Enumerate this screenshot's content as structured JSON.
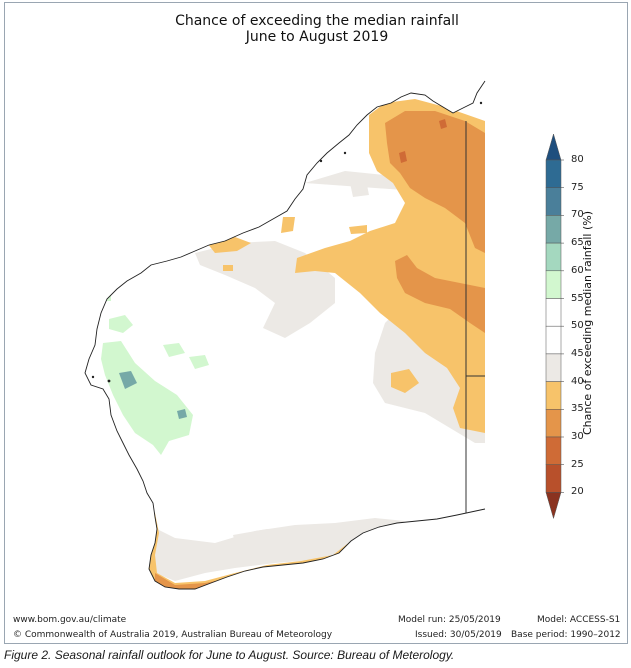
{
  "title_line1": "Chance of exceeding the median rainfall",
  "title_line2": "June to August 2019",
  "colorbar": {
    "label": "Chance of exceeding median rainfall (%)",
    "ticks": [
      "80",
      "75",
      "70",
      "65",
      "60",
      "55",
      "50",
      "45",
      "40",
      "35",
      "30",
      "25",
      "20"
    ],
    "colors": [
      "#2e6b93",
      "#4a7f9a",
      "#76a9a7",
      "#a4d8bf",
      "#d2f7cf",
      "#ffffff",
      "#ffffff",
      "#ece9e5",
      "#f7c36a",
      "#e4954a",
      "#cf6b36",
      "#b8502b",
      "#9c3c22"
    ],
    "top_tip_color": "#1f4f7e",
    "bottom_tip_color": "#8a3320"
  },
  "footer": {
    "url": "www.bom.gov.au/climate",
    "copyright": "© Commonwealth of Australia 2019, Australian Bureau of Meteorology",
    "model_run": "Model run: 25/05/2019",
    "issued": "Issued: 30/05/2019",
    "model": "Model: ACCESS-S1",
    "base_period": "Base period: 1990–2012"
  },
  "caption": "Figure 2. Seasonal rainfall outlook for June to August. Source: Bureau of Meterology."
}
